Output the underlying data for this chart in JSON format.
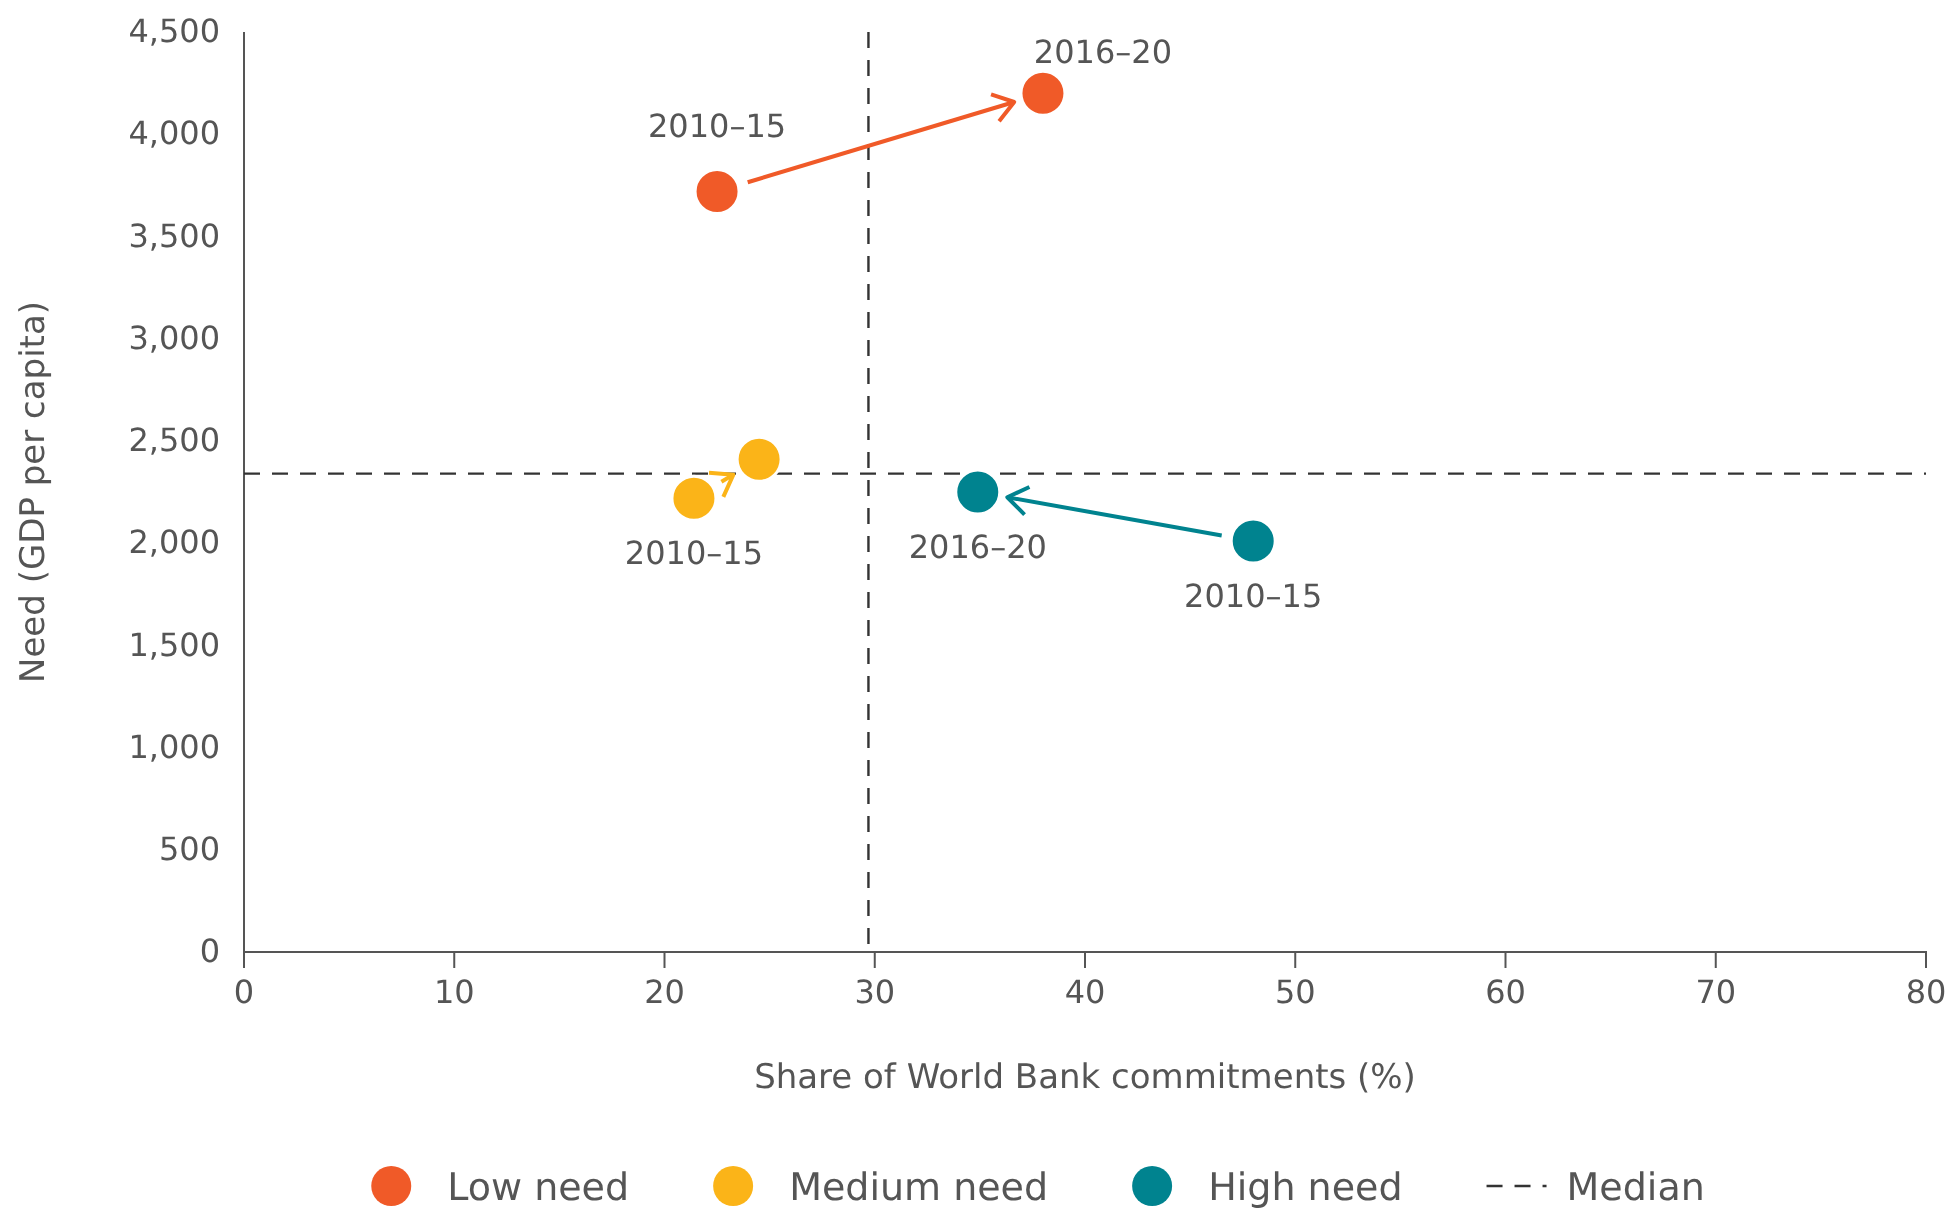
{
  "chart_data": {
    "type": "scatter",
    "xlabel": "Share of World Bank commitments (%)",
    "ylabel": "Need (GDP per capita)",
    "xlim": [
      0,
      80
    ],
    "xticks": [
      0,
      10,
      20,
      30,
      40,
      50,
      60,
      70,
      80
    ],
    "ylim": [
      0,
      4500
    ],
    "yticks": [
      0,
      {
        "value": 500,
        "label": "500"
      },
      {
        "value": 1000,
        "label": "1,000"
      },
      {
        "value": 1500,
        "label": "1,500"
      },
      {
        "value": 2000,
        "label": "2,000"
      },
      {
        "value": 2500,
        "label": "2,500"
      },
      {
        "value": 3000,
        "label": "3,000"
      },
      {
        "value": 3500,
        "label": "3,500"
      },
      {
        "value": 4000,
        "label": "4,000"
      },
      {
        "value": 4500,
        "label": "4,500"
      }
    ],
    "series": [
      {
        "name": "Low need",
        "color": "#f05a28",
        "x": [
          22.5,
          38
        ],
        "values": [
          3720,
          4200
        ]
      },
      {
        "name": "Medium need",
        "color": "#fbb418",
        "x": [
          21.4,
          24.5
        ],
        "values": [
          2220,
          2410
        ]
      },
      {
        "name": "High need",
        "color": "#00838f",
        "x": [
          48,
          34.9
        ],
        "values": [
          2010,
          2250
        ]
      }
    ],
    "ref_lines": [
      {
        "axis": "x",
        "value": 29.7,
        "label": "Median",
        "line_style": "dashed",
        "color": "#333333"
      },
      {
        "axis": "y",
        "value": 2340,
        "line_style": "dashed",
        "color": "#333333"
      }
    ],
    "annotations": [
      {
        "text": "2010–15",
        "x": 22.5,
        "y": 3720
      },
      {
        "text": "2016–20",
        "x": 38,
        "y": 4200
      },
      {
        "text": "2010–15",
        "x": 21.4,
        "y": 2220
      },
      {
        "text": "2010–15",
        "x": 48,
        "y": 2010
      },
      {
        "text": "2016–20",
        "x": 34.9,
        "y": 2250
      }
    ],
    "marker": "circle",
    "legend": "bottom",
    "grid": false
  }
}
